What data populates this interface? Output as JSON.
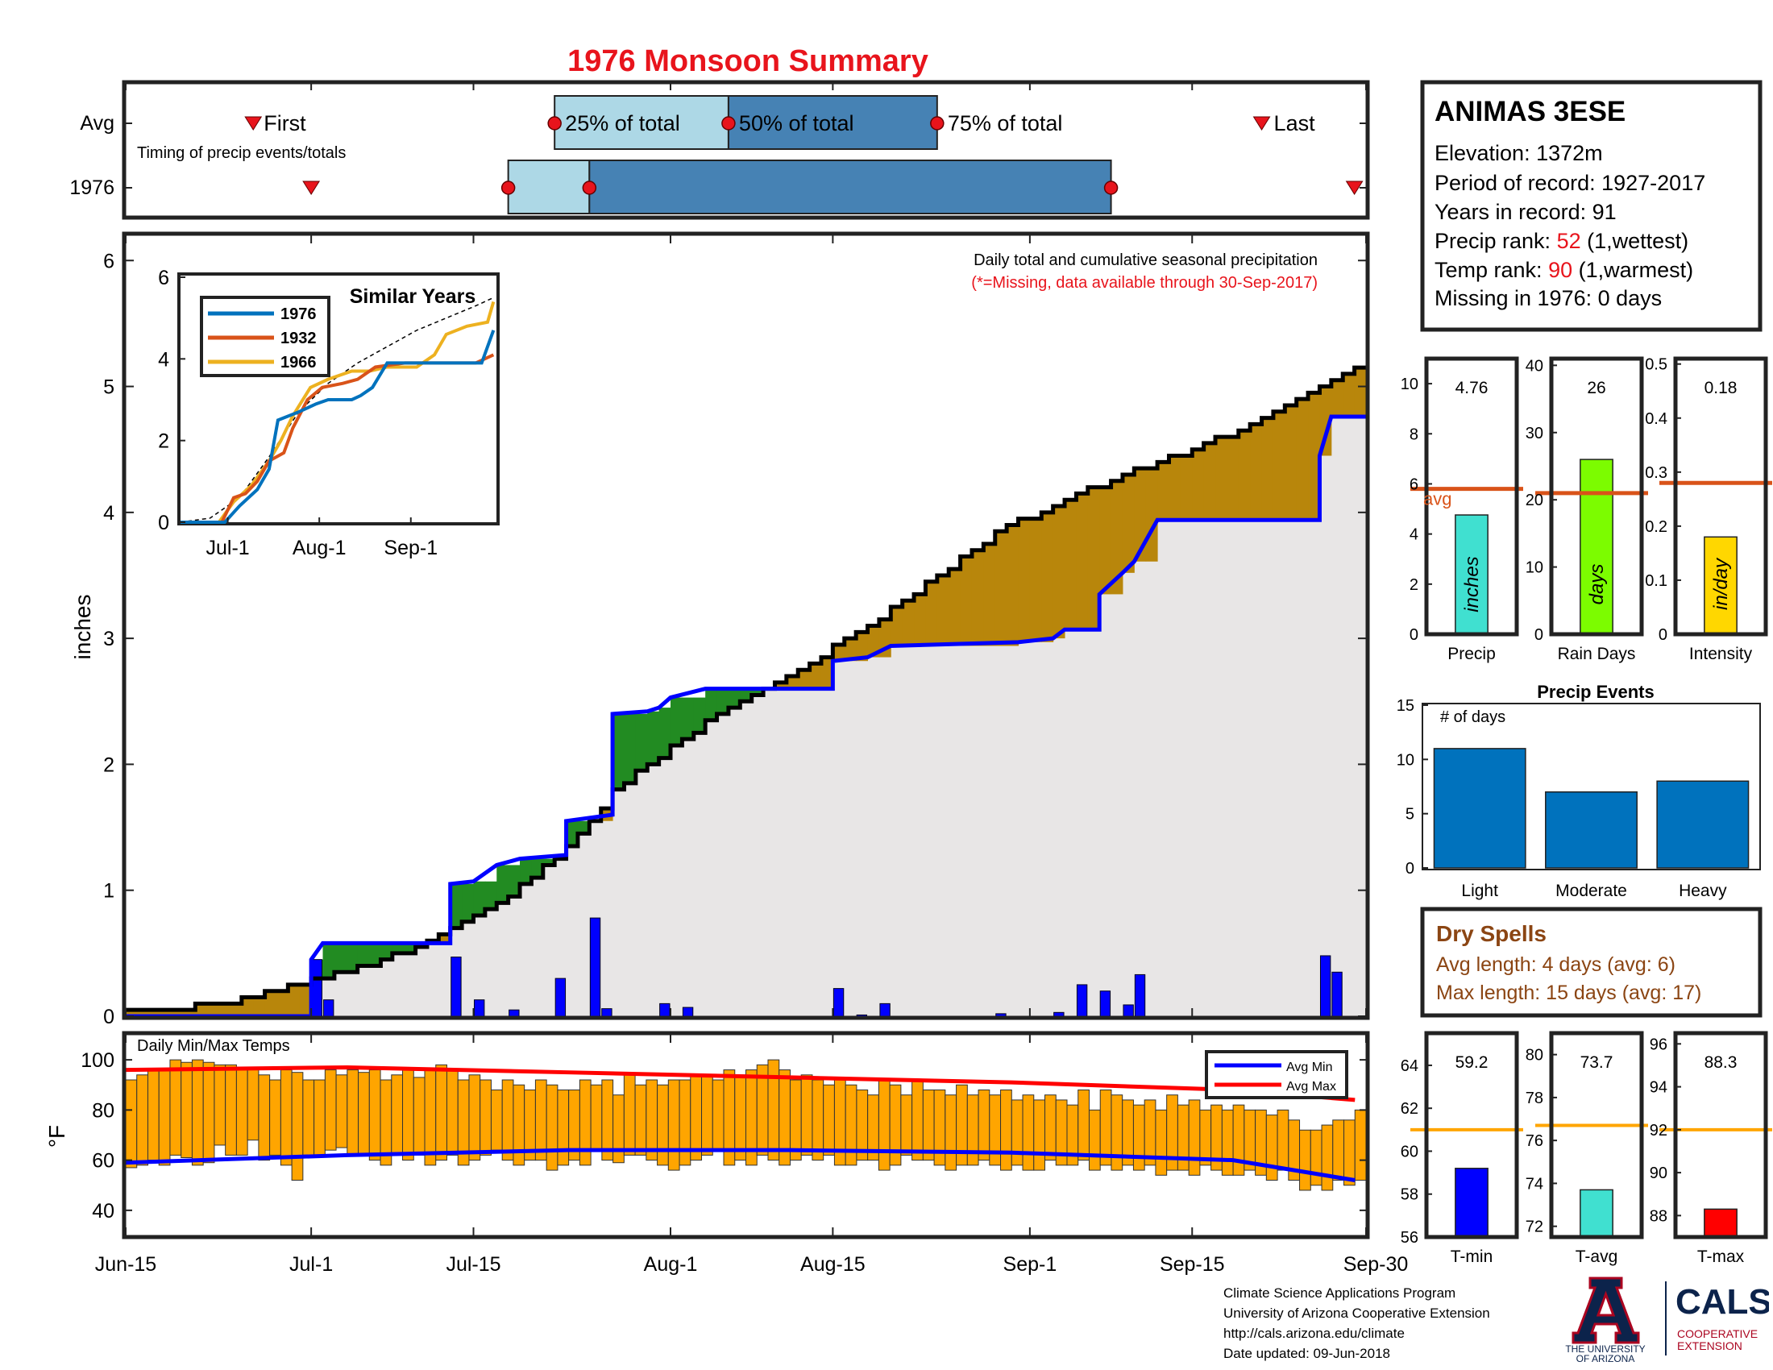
{
  "title": "1976 Monsoon Summary",
  "station": {
    "name": "ANIMAS 3ESE",
    "elevation_label": "Elevation: 1372m",
    "period_label": "Period of record: 1927-2017",
    "years_label": "Years in record: 91",
    "precip_rank_prefix": "Precip rank: ",
    "precip_rank_value": "52",
    "precip_rank_suffix": " (1,wettest)",
    "temp_rank_prefix": "Temp rank: ",
    "temp_rank_value": "90",
    "temp_rank_suffix": " (1,warmest)",
    "missing_label": "Missing in 1976: 0 days"
  },
  "colors": {
    "title": "#e8141c",
    "light_blue": "#add8e6",
    "steel_blue": "#4682b4",
    "above_avg": "#b8860b",
    "below_avg": "#228b22",
    "daily_bar": "#0000ff",
    "temp_bar": "#ffa500",
    "avg_line": "#d95319",
    "dry_spells": "#8b4513",
    "rank_red": "#e8141c"
  },
  "chart_data": [
    {
      "id": "timing",
      "type": "timeline",
      "row_labels": [
        "Avg",
        "1976"
      ],
      "annotation": "Timing of precip events/totals",
      "avg": {
        "first": "2017-06-26",
        "p25": "2017-07-22",
        "p50": "2017-08-06",
        "p75": "2017-08-24",
        "last": "2017-09-21"
      },
      "year": {
        "first": "2017-07-01",
        "p25": "2017-07-18",
        "p50": "2017-07-25",
        "p75": "2017-09-08",
        "last": "2017-09-29"
      },
      "labels": {
        "first": "First",
        "p25": "25% of total",
        "p50": "50% of total",
        "p75": "75% of total",
        "last": "Last"
      }
    },
    {
      "id": "precip",
      "type": "area",
      "ylabel": "inches",
      "ylim": [
        0,
        6.2
      ],
      "yticks": [
        0,
        1,
        2,
        3,
        4,
        5,
        6
      ],
      "x_ticks": [
        "Jun-15",
        "Jul-1",
        "Jul-15",
        "Aug-1",
        "Aug-15",
        "Sep-1",
        "Sep-15",
        "Sep-30"
      ],
      "note": "Daily total and cumulative seasonal precipitation",
      "note2": "(*=Missing, data available through 30-Sep-2017)",
      "avg_cumulative": [
        [
          0,
          0.03
        ],
        [
          5,
          0.07
        ],
        [
          10,
          0.13
        ],
        [
          16,
          0.28
        ],
        [
          20,
          0.38
        ],
        [
          26,
          0.58
        ],
        [
          32,
          0.88
        ],
        [
          38,
          1.33
        ],
        [
          42,
          1.78
        ],
        [
          46,
          2.07
        ],
        [
          50,
          2.33
        ],
        [
          55,
          2.6
        ],
        [
          60,
          2.87
        ],
        [
          65,
          3.17
        ],
        [
          70,
          3.5
        ],
        [
          75,
          3.84
        ],
        [
          80,
          4.06
        ],
        [
          85,
          4.26
        ],
        [
          90,
          4.44
        ],
        [
          95,
          4.61
        ],
        [
          100,
          4.85
        ],
        [
          105,
          5.12
        ],
        [
          109,
          5.31
        ],
        [
          111,
          5.6
        ]
      ],
      "year_cumulative": [
        [
          0,
          0
        ],
        [
          16,
          0
        ],
        [
          16,
          0.45
        ],
        [
          17,
          0.58
        ],
        [
          28,
          0.58
        ],
        [
          28,
          1.05
        ],
        [
          30,
          1.07
        ],
        [
          32,
          1.2
        ],
        [
          34,
          1.25
        ],
        [
          38,
          1.28
        ],
        [
          38,
          1.55
        ],
        [
          42,
          1.6
        ],
        [
          42,
          2.4
        ],
        [
          45,
          2.42
        ],
        [
          46,
          2.45
        ],
        [
          47,
          2.53
        ],
        [
          50,
          2.6
        ],
        [
          61,
          2.6
        ],
        [
          61,
          2.82
        ],
        [
          64,
          2.85
        ],
        [
          66,
          2.94
        ],
        [
          77,
          2.97
        ],
        [
          80,
          3.0
        ],
        [
          81,
          3.07
        ],
        [
          84,
          3.07
        ],
        [
          84,
          3.35
        ],
        [
          86,
          3.52
        ],
        [
          87,
          3.61
        ],
        [
          89,
          3.94
        ],
        [
          103,
          3.94
        ],
        [
          103,
          4.45
        ],
        [
          104,
          4.76
        ],
        [
          107,
          4.76
        ]
      ],
      "daily_values": [
        [
          16,
          0.45
        ],
        [
          17,
          0.13
        ],
        [
          28,
          0.47
        ],
        [
          30,
          0.13
        ],
        [
          33,
          0.05
        ],
        [
          37,
          0.3
        ],
        [
          40,
          0.78
        ],
        [
          41,
          0.06
        ],
        [
          46,
          0.1
        ],
        [
          48,
          0.07
        ],
        [
          61,
          0.22
        ],
        [
          63,
          0.01
        ],
        [
          65,
          0.1
        ],
        [
          75,
          0.02
        ],
        [
          80,
          0.03
        ],
        [
          82,
          0.25
        ],
        [
          84,
          0.2
        ],
        [
          86,
          0.09
        ],
        [
          87,
          0.33
        ],
        [
          103,
          0.48
        ],
        [
          104,
          0.35
        ]
      ]
    },
    {
      "id": "similar",
      "type": "line",
      "title": "Similar Years",
      "ylim": [
        0,
        6
      ],
      "yticks": [
        0,
        2,
        4,
        6
      ],
      "x_ticks": [
        "Jul-1",
        "Aug-1",
        "Sep-1"
      ],
      "series": [
        {
          "name": "1976",
          "color": "#0072bd",
          "points": [
            [
              0,
              0
            ],
            [
              15,
              0
            ],
            [
              20,
              0.4
            ],
            [
              26,
              0.8
            ],
            [
              30,
              1.3
            ],
            [
              33,
              2.5
            ],
            [
              40,
              2.7
            ],
            [
              46,
              2.9
            ],
            [
              50,
              3.0
            ],
            [
              58,
              3.0
            ],
            [
              61,
              3.1
            ],
            [
              65,
              3.3
            ],
            [
              70,
              3.9
            ],
            [
              80,
              3.9
            ],
            [
              102,
              3.9
            ],
            [
              106,
              4.7
            ]
          ]
        },
        {
          "name": "1932",
          "color": "#d95319",
          "points": [
            [
              0,
              0
            ],
            [
              14,
              0
            ],
            [
              18,
              0.6
            ],
            [
              22,
              0.7
            ],
            [
              26,
              1.0
            ],
            [
              30,
              1.5
            ],
            [
              35,
              1.7
            ],
            [
              38,
              2.3
            ],
            [
              43,
              3.0
            ],
            [
              48,
              3.3
            ],
            [
              55,
              3.4
            ],
            [
              60,
              3.5
            ],
            [
              66,
              3.8
            ],
            [
              76,
              3.9
            ],
            [
              100,
              3.9
            ],
            [
              106,
              4.1
            ]
          ]
        },
        {
          "name": "1966",
          "color": "#edb120",
          "points": [
            [
              0,
              0
            ],
            [
              13,
              0
            ],
            [
              18,
              0.5
            ],
            [
              24,
              0.9
            ],
            [
              30,
              1.5
            ],
            [
              34,
              2.0
            ],
            [
              38,
              2.6
            ],
            [
              44,
              3.3
            ],
            [
              50,
              3.5
            ],
            [
              58,
              3.7
            ],
            [
              64,
              3.7
            ],
            [
              70,
              3.8
            ],
            [
              80,
              3.8
            ],
            [
              86,
              4.1
            ],
            [
              90,
              4.6
            ],
            [
              97,
              4.8
            ],
            [
              104,
              4.9
            ],
            [
              106,
              5.4
            ]
          ]
        }
      ],
      "avg_points": [
        [
          0,
          0
        ],
        [
          10,
          0.1
        ],
        [
          20,
          0.6
        ],
        [
          30,
          1.6
        ],
        [
          40,
          2.7
        ],
        [
          50,
          3.4
        ],
        [
          60,
          3.9
        ],
        [
          70,
          4.3
        ],
        [
          80,
          4.7
        ],
        [
          90,
          5.0
        ],
        [
          100,
          5.3
        ],
        [
          106,
          5.5
        ]
      ]
    },
    {
      "id": "temps",
      "type": "bar",
      "title": "Daily Min/Max Temps",
      "ylabel": "°F",
      "ylim": [
        30,
        110
      ],
      "yticks": [
        40,
        60,
        80,
        100
      ],
      "legend": [
        "Avg Min",
        "Avg Max"
      ],
      "tmin": [
        57,
        58,
        60,
        58,
        62,
        61,
        58,
        59,
        66,
        62,
        62,
        68,
        60,
        62,
        58,
        52,
        62,
        62,
        64,
        65,
        62,
        62,
        60,
        58,
        62,
        60,
        62,
        58,
        60,
        62,
        58,
        60,
        62,
        64,
        60,
        58,
        60,
        60,
        56,
        58,
        60,
        58,
        64,
        60,
        59,
        62,
        62,
        60,
        58,
        56,
        58,
        60,
        62,
        64,
        58,
        60,
        58,
        62,
        60,
        58,
        60,
        62,
        60,
        62,
        58,
        58,
        60,
        60,
        56,
        58,
        62,
        60,
        60,
        58,
        56,
        58,
        58,
        60,
        58,
        56,
        58,
        56,
        56,
        60,
        58,
        58,
        60,
        56,
        58,
        56,
        58,
        56,
        58,
        54,
        56,
        56,
        54,
        58,
        56,
        54,
        54,
        56,
        54,
        52,
        56,
        52,
        48,
        50,
        48,
        52,
        50,
        52
      ],
      "tmax": [
        92,
        94,
        96,
        96,
        100,
        99,
        100,
        99,
        98,
        98,
        96,
        97,
        94,
        92,
        96,
        95,
        92,
        92,
        96,
        94,
        96,
        95,
        96,
        92,
        94,
        96,
        93,
        96,
        98,
        96,
        92,
        94,
        92,
        88,
        92,
        90,
        88,
        92,
        90,
        88,
        88,
        92,
        90,
        92,
        86,
        94,
        90,
        92,
        90,
        92,
        92,
        94,
        94,
        92,
        96,
        94,
        96,
        98,
        100,
        96,
        92,
        94,
        92,
        90,
        92,
        90,
        88,
        86,
        92,
        90,
        86,
        92,
        88,
        88,
        86,
        90,
        86,
        88,
        86,
        88,
        84,
        86,
        84,
        86,
        84,
        82,
        88,
        80,
        88,
        86,
        84,
        82,
        84,
        80,
        86,
        82,
        84,
        80,
        82,
        80,
        82,
        80,
        80,
        78,
        80,
        76,
        72,
        72,
        74,
        76,
        76,
        80
      ],
      "avg_min": [
        [
          0,
          59
        ],
        [
          20,
          62
        ],
        [
          40,
          64
        ],
        [
          60,
          64
        ],
        [
          80,
          63
        ],
        [
          100,
          60
        ],
        [
          111,
          52
        ]
      ],
      "avg_max": [
        [
          0,
          96
        ],
        [
          20,
          97
        ],
        [
          40,
          95
        ],
        [
          60,
          93
        ],
        [
          80,
          91
        ],
        [
          100,
          88
        ],
        [
          111,
          84
        ]
      ]
    },
    {
      "id": "precip_bar",
      "type": "bar",
      "value": 4.76,
      "value_label": "4.76",
      "avg": 5.8,
      "ylim": [
        0,
        11
      ],
      "yticks": [
        0,
        2,
        4,
        6,
        8,
        10
      ],
      "category": "Precip",
      "unit": "inches",
      "avg_label": "avg",
      "color": "#40e0d0"
    },
    {
      "id": "raindays_bar",
      "type": "bar",
      "value": 26,
      "value_label": "26",
      "avg": 21,
      "ylim": [
        0,
        41
      ],
      "yticks": [
        0,
        10,
        20,
        30,
        40
      ],
      "category": "Rain Days",
      "unit": "days",
      "color": "#7cfc00"
    },
    {
      "id": "intensity_bar",
      "type": "bar",
      "value": 0.18,
      "value_label": "0.18",
      "avg": 0.28,
      "ylim": [
        0,
        0.51
      ],
      "yticks": [
        0,
        0.1,
        0.2,
        0.3,
        0.4,
        0.5
      ],
      "tick_labels": [
        "0",
        "0.1",
        "0.2",
        "0.3",
        "0.4",
        "0.5"
      ],
      "category": "Intensity",
      "unit": "in/day",
      "color": "#ffd700"
    },
    {
      "id": "events",
      "type": "bar",
      "title": "Precip Events",
      "annotation": "# of days",
      "categories": [
        "Light",
        "Moderate",
        "Heavy"
      ],
      "values": [
        11,
        7,
        8
      ],
      "ylim": [
        0,
        15
      ],
      "yticks": [
        0,
        5,
        10,
        15
      ],
      "color": "#0072bd"
    },
    {
      "id": "tmin_bar",
      "type": "bar",
      "value": 59.2,
      "value_label": "59.2",
      "avg": 61,
      "ylim": [
        56,
        65.5
      ],
      "yticks": [
        56,
        58,
        60,
        62,
        64
      ],
      "category": "T-min",
      "color": "#0000ff"
    },
    {
      "id": "tavg_bar",
      "type": "bar",
      "value": 73.7,
      "value_label": "73.7",
      "avg": 76.7,
      "ylim": [
        71.5,
        81
      ],
      "yticks": [
        72,
        74,
        76,
        78,
        80
      ],
      "category": "T-avg",
      "color": "#40e0d0"
    },
    {
      "id": "tmax_bar",
      "type": "bar",
      "value": 88.3,
      "value_label": "88.3",
      "avg": 92,
      "ylim": [
        87,
        96.5
      ],
      "yticks": [
        88,
        90,
        92,
        94,
        96
      ],
      "category": "T-max",
      "color": "#ff0000"
    }
  ],
  "dry_spells": {
    "title": "Dry Spells",
    "avg_line": "Avg length: 4 days (avg: 6)",
    "max_line": "Max length: 15 days (avg: 17)"
  },
  "footer": {
    "line1": "Climate Science Applications Program",
    "line2": "University of Arizona Cooperative Extension",
    "line3": "http://cals.arizona.edu/climate",
    "line4": " Date updated: 09-Jun-2018"
  },
  "logos": {
    "ua_line1": "THE UNIVERSITY",
    "ua_line2": "OF ARIZONA",
    "cals_title": "CALS",
    "cals_line1": "COOPERATIVE",
    "cals_line2": "EXTENSION"
  }
}
